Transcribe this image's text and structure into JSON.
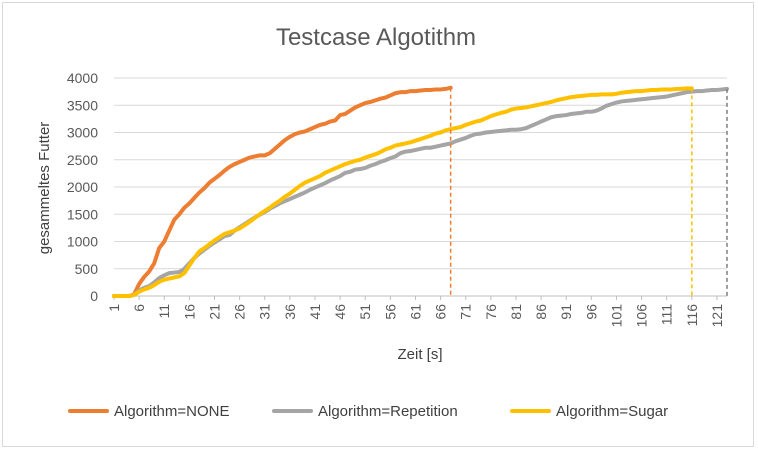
{
  "chart_data": {
    "type": "line",
    "title": "Testcase Algotithm",
    "xlabel": "Zeit [s]",
    "ylabel": "gesammeltes Futter",
    "xlim": [
      1,
      123
    ],
    "ylim": [
      0,
      4000
    ],
    "y_ticks": [
      "0",
      "500",
      "1000",
      "1500",
      "2000",
      "2500",
      "3000",
      "3500",
      "4000"
    ],
    "x_ticks": [
      "1",
      "6",
      "11",
      "16",
      "21",
      "26",
      "31",
      "36",
      "41",
      "46",
      "51",
      "56",
      "61",
      "66",
      "71",
      "76",
      "81",
      "86",
      "91",
      "96",
      "101",
      "106",
      "111",
      "116",
      "121"
    ],
    "grid": "horizontal",
    "legend": "bottom",
    "series": [
      {
        "name": "Algorithm=NONE",
        "color": "#ED7D31",
        "end_x": 68,
        "points": [
          [
            1,
            0
          ],
          [
            4,
            0
          ],
          [
            5,
            30
          ],
          [
            6,
            220
          ],
          [
            7,
            350
          ],
          [
            8,
            450
          ],
          [
            9,
            600
          ],
          [
            10,
            880
          ],
          [
            11,
            1000
          ],
          [
            12,
            1200
          ],
          [
            13,
            1400
          ],
          [
            14,
            1500
          ],
          [
            15,
            1620
          ],
          [
            16,
            1700
          ],
          [
            17,
            1800
          ],
          [
            18,
            1900
          ],
          [
            19,
            1980
          ],
          [
            20,
            2080
          ],
          [
            21,
            2150
          ],
          [
            22,
            2220
          ],
          [
            23,
            2300
          ],
          [
            24,
            2370
          ],
          [
            25,
            2420
          ],
          [
            26,
            2460
          ],
          [
            27,
            2500
          ],
          [
            28,
            2540
          ],
          [
            29,
            2560
          ],
          [
            30,
            2580
          ],
          [
            31,
            2580
          ],
          [
            32,
            2620
          ],
          [
            33,
            2700
          ],
          [
            34,
            2780
          ],
          [
            35,
            2860
          ],
          [
            36,
            2920
          ],
          [
            37,
            2970
          ],
          [
            38,
            3000
          ],
          [
            39,
            3020
          ],
          [
            40,
            3060
          ],
          [
            41,
            3100
          ],
          [
            42,
            3140
          ],
          [
            43,
            3160
          ],
          [
            44,
            3200
          ],
          [
            45,
            3220
          ],
          [
            46,
            3320
          ],
          [
            47,
            3340
          ],
          [
            48,
            3400
          ],
          [
            49,
            3460
          ],
          [
            50,
            3500
          ],
          [
            51,
            3540
          ],
          [
            52,
            3560
          ],
          [
            53,
            3590
          ],
          [
            54,
            3620
          ],
          [
            55,
            3640
          ],
          [
            56,
            3680
          ],
          [
            57,
            3720
          ],
          [
            58,
            3740
          ],
          [
            59,
            3740
          ],
          [
            60,
            3760
          ],
          [
            61,
            3760
          ],
          [
            62,
            3770
          ],
          [
            63,
            3780
          ],
          [
            64,
            3780
          ],
          [
            65,
            3790
          ],
          [
            66,
            3790
          ],
          [
            67,
            3800
          ],
          [
            68,
            3820
          ]
        ]
      },
      {
        "name": "Algorithm=Repetition",
        "color": "#A5A5A5",
        "end_x": 123,
        "points": [
          [
            1,
            0
          ],
          [
            4,
            0
          ],
          [
            5,
            20
          ],
          [
            6,
            100
          ],
          [
            7,
            150
          ],
          [
            8,
            180
          ],
          [
            9,
            250
          ],
          [
            10,
            330
          ],
          [
            11,
            380
          ],
          [
            12,
            420
          ],
          [
            13,
            430
          ],
          [
            14,
            440
          ],
          [
            15,
            500
          ],
          [
            16,
            600
          ],
          [
            17,
            700
          ],
          [
            18,
            780
          ],
          [
            19,
            850
          ],
          [
            20,
            920
          ],
          [
            21,
            980
          ],
          [
            22,
            1040
          ],
          [
            23,
            1100
          ],
          [
            24,
            1120
          ],
          [
            25,
            1200
          ],
          [
            26,
            1260
          ],
          [
            27,
            1320
          ],
          [
            28,
            1380
          ],
          [
            29,
            1440
          ],
          [
            30,
            1490
          ],
          [
            31,
            1540
          ],
          [
            32,
            1600
          ],
          [
            33,
            1650
          ],
          [
            34,
            1700
          ],
          [
            35,
            1740
          ],
          [
            36,
            1780
          ],
          [
            37,
            1820
          ],
          [
            38,
            1860
          ],
          [
            39,
            1900
          ],
          [
            40,
            1950
          ],
          [
            41,
            1990
          ],
          [
            42,
            2030
          ],
          [
            43,
            2070
          ],
          [
            44,
            2120
          ],
          [
            45,
            2160
          ],
          [
            46,
            2200
          ],
          [
            47,
            2260
          ],
          [
            48,
            2280
          ],
          [
            49,
            2320
          ],
          [
            50,
            2330
          ],
          [
            51,
            2350
          ],
          [
            52,
            2390
          ],
          [
            53,
            2420
          ],
          [
            54,
            2460
          ],
          [
            55,
            2490
          ],
          [
            56,
            2530
          ],
          [
            57,
            2560
          ],
          [
            58,
            2620
          ],
          [
            59,
            2650
          ],
          [
            60,
            2660
          ],
          [
            61,
            2680
          ],
          [
            62,
            2700
          ],
          [
            63,
            2720
          ],
          [
            64,
            2720
          ],
          [
            65,
            2740
          ],
          [
            66,
            2760
          ],
          [
            67,
            2780
          ],
          [
            68,
            2800
          ],
          [
            69,
            2840
          ],
          [
            70,
            2870
          ],
          [
            71,
            2900
          ],
          [
            72,
            2940
          ],
          [
            73,
            2970
          ],
          [
            74,
            2980
          ],
          [
            75,
            3000
          ],
          [
            76,
            3010
          ],
          [
            77,
            3020
          ],
          [
            78,
            3030
          ],
          [
            79,
            3040
          ],
          [
            80,
            3050
          ],
          [
            81,
            3050
          ],
          [
            82,
            3060
          ],
          [
            83,
            3080
          ],
          [
            84,
            3120
          ],
          [
            85,
            3160
          ],
          [
            86,
            3200
          ],
          [
            87,
            3240
          ],
          [
            88,
            3280
          ],
          [
            89,
            3300
          ],
          [
            90,
            3310
          ],
          [
            91,
            3320
          ],
          [
            92,
            3340
          ],
          [
            93,
            3350
          ],
          [
            94,
            3360
          ],
          [
            95,
            3380
          ],
          [
            96,
            3380
          ],
          [
            97,
            3400
          ],
          [
            98,
            3440
          ],
          [
            99,
            3490
          ],
          [
            100,
            3520
          ],
          [
            101,
            3550
          ],
          [
            102,
            3570
          ],
          [
            103,
            3580
          ],
          [
            104,
            3590
          ],
          [
            105,
            3600
          ],
          [
            106,
            3610
          ],
          [
            107,
            3620
          ],
          [
            108,
            3630
          ],
          [
            109,
            3640
          ],
          [
            110,
            3650
          ],
          [
            111,
            3660
          ],
          [
            112,
            3680
          ],
          [
            113,
            3700
          ],
          [
            114,
            3720
          ],
          [
            115,
            3740
          ],
          [
            116,
            3750
          ],
          [
            117,
            3760
          ],
          [
            118,
            3760
          ],
          [
            119,
            3770
          ],
          [
            120,
            3780
          ],
          [
            121,
            3780
          ],
          [
            122,
            3790
          ],
          [
            123,
            3800
          ]
        ]
      },
      {
        "name": "Algorithm=Sugar",
        "color": "#FFC000",
        "end_x": 116,
        "points": [
          [
            1,
            0
          ],
          [
            4,
            0
          ],
          [
            5,
            20
          ],
          [
            6,
            80
          ],
          [
            7,
            120
          ],
          [
            8,
            150
          ],
          [
            9,
            200
          ],
          [
            10,
            260
          ],
          [
            11,
            300
          ],
          [
            12,
            320
          ],
          [
            13,
            340
          ],
          [
            14,
            360
          ],
          [
            15,
            420
          ],
          [
            16,
            560
          ],
          [
            17,
            700
          ],
          [
            18,
            820
          ],
          [
            19,
            880
          ],
          [
            20,
            950
          ],
          [
            21,
            1020
          ],
          [
            22,
            1080
          ],
          [
            23,
            1140
          ],
          [
            24,
            1170
          ],
          [
            25,
            1200
          ],
          [
            26,
            1240
          ],
          [
            27,
            1300
          ],
          [
            28,
            1360
          ],
          [
            29,
            1430
          ],
          [
            30,
            1500
          ],
          [
            31,
            1560
          ],
          [
            32,
            1620
          ],
          [
            33,
            1690
          ],
          [
            34,
            1750
          ],
          [
            35,
            1820
          ],
          [
            36,
            1880
          ],
          [
            37,
            1950
          ],
          [
            38,
            2020
          ],
          [
            39,
            2080
          ],
          [
            40,
            2120
          ],
          [
            41,
            2160
          ],
          [
            42,
            2200
          ],
          [
            43,
            2260
          ],
          [
            44,
            2300
          ],
          [
            45,
            2340
          ],
          [
            46,
            2380
          ],
          [
            47,
            2420
          ],
          [
            48,
            2450
          ],
          [
            49,
            2480
          ],
          [
            50,
            2500
          ],
          [
            51,
            2540
          ],
          [
            52,
            2570
          ],
          [
            53,
            2600
          ],
          [
            54,
            2640
          ],
          [
            55,
            2690
          ],
          [
            56,
            2720
          ],
          [
            57,
            2760
          ],
          [
            58,
            2780
          ],
          [
            59,
            2800
          ],
          [
            60,
            2820
          ],
          [
            61,
            2850
          ],
          [
            62,
            2880
          ],
          [
            63,
            2910
          ],
          [
            64,
            2940
          ],
          [
            65,
            2980
          ],
          [
            66,
            3000
          ],
          [
            67,
            3040
          ],
          [
            68,
            3060
          ],
          [
            69,
            3080
          ],
          [
            70,
            3100
          ],
          [
            71,
            3140
          ],
          [
            72,
            3170
          ],
          [
            73,
            3200
          ],
          [
            74,
            3220
          ],
          [
            75,
            3260
          ],
          [
            76,
            3300
          ],
          [
            77,
            3330
          ],
          [
            78,
            3360
          ],
          [
            79,
            3380
          ],
          [
            80,
            3420
          ],
          [
            81,
            3440
          ],
          [
            82,
            3450
          ],
          [
            83,
            3460
          ],
          [
            84,
            3480
          ],
          [
            85,
            3500
          ],
          [
            86,
            3520
          ],
          [
            87,
            3540
          ],
          [
            88,
            3560
          ],
          [
            89,
            3590
          ],
          [
            90,
            3610
          ],
          [
            91,
            3630
          ],
          [
            92,
            3650
          ],
          [
            93,
            3660
          ],
          [
            94,
            3670
          ],
          [
            95,
            3680
          ],
          [
            96,
            3690
          ],
          [
            97,
            3690
          ],
          [
            98,
            3700
          ],
          [
            99,
            3700
          ],
          [
            100,
            3700
          ],
          [
            101,
            3710
          ],
          [
            102,
            3730
          ],
          [
            103,
            3740
          ],
          [
            104,
            3750
          ],
          [
            105,
            3760
          ],
          [
            106,
            3760
          ],
          [
            107,
            3770
          ],
          [
            108,
            3780
          ],
          [
            109,
            3780
          ],
          [
            110,
            3790
          ],
          [
            111,
            3790
          ],
          [
            112,
            3790
          ],
          [
            113,
            3800
          ],
          [
            114,
            3800
          ],
          [
            115,
            3810
          ],
          [
            116,
            3810
          ]
        ]
      }
    ]
  }
}
